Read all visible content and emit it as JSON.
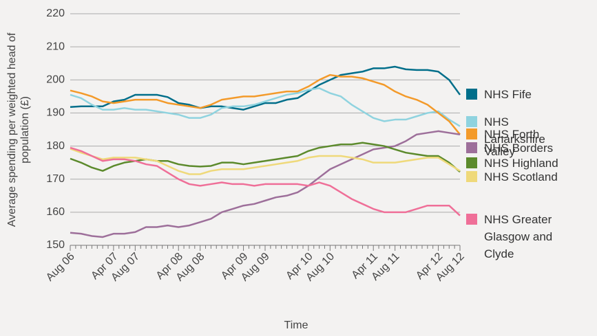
{
  "chart_data": {
    "type": "line",
    "y_label": "Average spending per weighted head of population (£)",
    "x_label": "Time",
    "categories": [
      "Aug 06",
      null,
      null,
      null,
      "Apr 07",
      null,
      "Aug 07",
      null,
      null,
      null,
      "Apr 08",
      null,
      "Aug 08",
      null,
      null,
      null,
      "Apr 09",
      null,
      "Aug 09",
      null,
      null,
      null,
      "Apr 10",
      null,
      "Aug 10",
      null,
      null,
      null,
      "Apr 11",
      null,
      "Aug 11",
      null,
      null,
      null,
      "Apr 12",
      null,
      "Aug 12"
    ],
    "series": [
      {
        "name": "NHS Fife",
        "color": "#006e8a",
        "values": [
          191.8,
          192,
          192,
          192,
          193.5,
          194,
          195.5,
          195.5,
          195.5,
          194.8,
          193,
          192.5,
          191.5,
          192,
          192,
          191.5,
          191,
          192,
          193,
          193,
          194,
          194.5,
          196.5,
          198.5,
          200,
          201.5,
          202,
          202.5,
          203.5,
          203.5,
          204,
          203.2,
          203,
          203,
          202.5,
          200,
          195.5
        ]
      },
      {
        "name": "NHS Lanarkshire",
        "color": "#8fd3df",
        "values": [
          195.5,
          194.5,
          192.5,
          191,
          191,
          191.5,
          191,
          191,
          190.5,
          190,
          189.5,
          188.5,
          188.5,
          189.5,
          191.5,
          192,
          192,
          192.5,
          193.5,
          194.5,
          195.5,
          196,
          197,
          197.5,
          196,
          195,
          192.5,
          190.5,
          188.5,
          187.5,
          188,
          188,
          189,
          190,
          190.5,
          188,
          186
        ]
      },
      {
        "name": "NHS Forth Valley",
        "color": "#f39a2a",
        "values": [
          196.8,
          196,
          195,
          193.5,
          193,
          193.5,
          194,
          194,
          194,
          193,
          192.5,
          192,
          191.5,
          192.5,
          194,
          194.5,
          195,
          195,
          195.5,
          196,
          196.5,
          196.5,
          198,
          200,
          201.5,
          201,
          201,
          200.5,
          199.5,
          198.5,
          196.5,
          195,
          194,
          192.5,
          190,
          187.5,
          183.5
        ]
      },
      {
        "name": "NHS Borders",
        "color": "#9d6f9a",
        "values": [
          153.8,
          153.5,
          152.8,
          152.5,
          153.5,
          153.5,
          154,
          155.5,
          155.5,
          156,
          155.5,
          156,
          157,
          158,
          160,
          161,
          162,
          162.5,
          163.5,
          164.5,
          165,
          166,
          168,
          170.5,
          173,
          174.5,
          176,
          177.5,
          179,
          179.5,
          180,
          181.5,
          183.5,
          184,
          184.5,
          184,
          183.5
        ]
      },
      {
        "name": "NHS Highland",
        "color": "#5c8a2c",
        "values": [
          176.2,
          175,
          173.5,
          172.5,
          174,
          175,
          175.5,
          176,
          175.5,
          175.5,
          174.5,
          174,
          173.8,
          174,
          175,
          175,
          174.5,
          175,
          175.5,
          176,
          176.5,
          177,
          178.5,
          179.5,
          180,
          180.5,
          180.5,
          181,
          180.5,
          180,
          179,
          178,
          177.5,
          177,
          177,
          175,
          172.2
        ]
      },
      {
        "name": "NHS Scotland",
        "color": "#efd97a",
        "values": [
          179.2,
          178,
          177,
          176,
          176.5,
          176.5,
          176.5,
          176,
          175.5,
          174,
          172.5,
          171.5,
          171.5,
          172.5,
          173,
          173,
          173,
          173.5,
          174,
          174.5,
          175,
          175.5,
          176.5,
          177,
          177,
          177,
          176.5,
          176,
          175,
          175,
          175,
          175.5,
          176,
          176.5,
          176.5,
          174.5,
          172.5
        ]
      },
      {
        "name": "NHS Greater Glasgow and Clyde",
        "color": "#ef6f98",
        "values": [
          179.5,
          178.5,
          177,
          175.5,
          176,
          176,
          175.5,
          174.5,
          174,
          172,
          170,
          168.5,
          168,
          168.5,
          169,
          168.5,
          168.5,
          168,
          168.5,
          168.5,
          168.5,
          168.5,
          168,
          169,
          168,
          166,
          164,
          162.5,
          161,
          160,
          160,
          160,
          161,
          162,
          162,
          162,
          159
        ]
      }
    ],
    "ylim": [
      150,
      220
    ],
    "yticks": [
      150,
      160,
      170,
      180,
      190,
      200,
      210,
      220
    ],
    "grid": true
  }
}
